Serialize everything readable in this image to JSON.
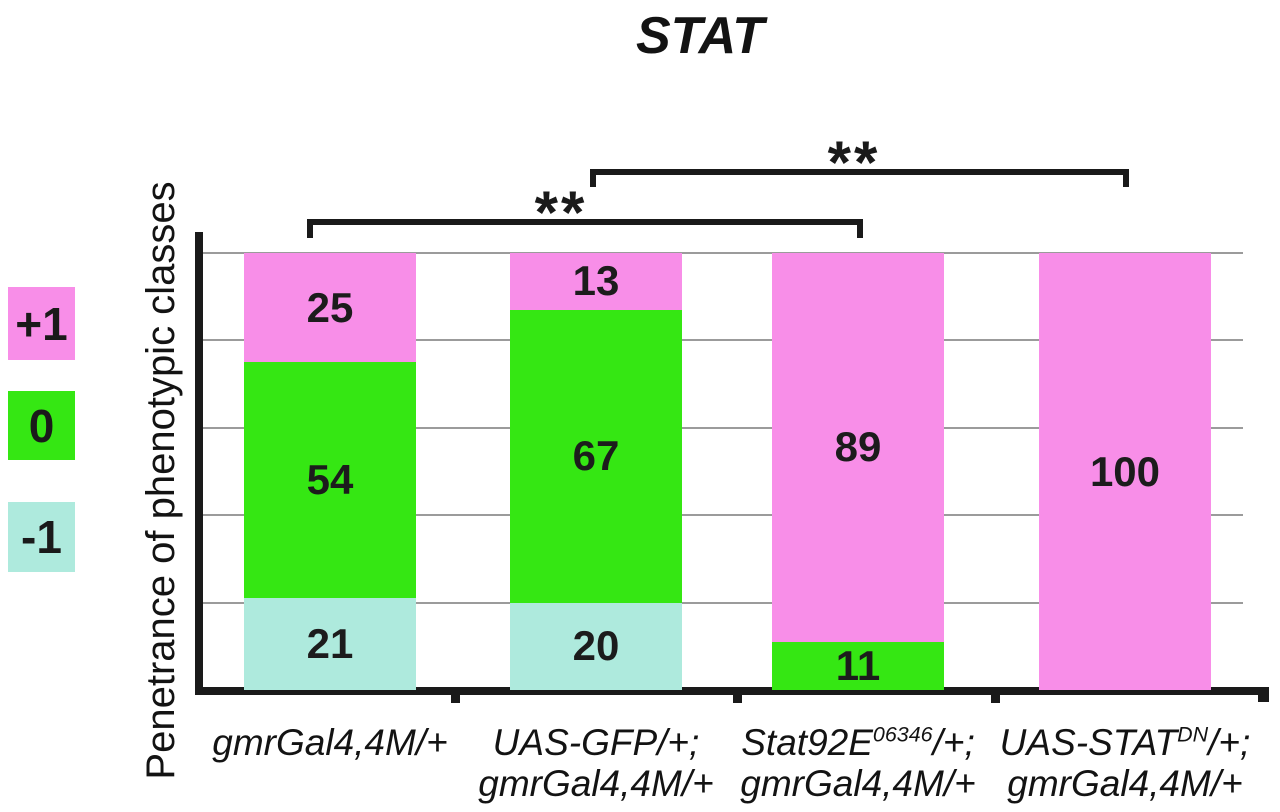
{
  "chart_data": {
    "type": "bar",
    "stacked": true,
    "title": "STAT",
    "ylabel": "Penetrance of phenotypic classes",
    "xlabel": "",
    "ylim": [
      0,
      100
    ],
    "gridline_values": [
      100,
      80,
      60,
      40,
      20
    ],
    "grid": true,
    "legend_position": "left",
    "legend": [
      {
        "label": "+1",
        "color": "#f88ee8"
      },
      {
        "label": "0",
        "color": "#35e713"
      },
      {
        "label": "-1",
        "color": "#aeeadd"
      }
    ],
    "categories": [
      {
        "text": "gmrGal4,4M/+",
        "label_lines": [
          [
            {
              "t": "gmrGal4,4M/+"
            }
          ]
        ]
      },
      {
        "text": "UAS-GFP/+; gmrGal4,4M/+",
        "label_lines": [
          [
            {
              "t": "UAS-GFP/+;"
            }
          ],
          [
            {
              "t": "gmrGal4,4M/+"
            }
          ]
        ]
      },
      {
        "text": "Stat92E06346/+; gmrGal4,4M/+",
        "label_lines": [
          [
            {
              "t": "Stat92E"
            },
            {
              "t": "06346",
              "sup": true
            },
            {
              "t": "/+;"
            }
          ],
          [
            {
              "t": "gmrGal4,4M/+"
            }
          ]
        ]
      },
      {
        "text": "UAS-STATDN/+; gmrGal4,4M/+",
        "label_lines": [
          [
            {
              "t": "UAS-STAT"
            },
            {
              "t": "DN",
              "sup": true
            },
            {
              "t": "/+;"
            }
          ],
          [
            {
              "t": "gmrGal4,4M/+"
            }
          ]
        ]
      }
    ],
    "series": [
      {
        "name": "+1",
        "color": "#f88ee8",
        "values": [
          25,
          13,
          89,
          100
        ]
      },
      {
        "name": "0",
        "color": "#35e713",
        "values": [
          54,
          67,
          11,
          0
        ]
      },
      {
        "name": "-1",
        "color": "#aeeadd",
        "values": [
          21,
          20,
          0,
          0
        ]
      }
    ],
    "annotations": [
      {
        "text": "**",
        "from_category": 0,
        "to_category": 2
      },
      {
        "text": "**",
        "from_category": 1,
        "to_category": 3
      }
    ],
    "colors": {
      "axis": "#1a1a1a",
      "gridline": "#9b9b9b",
      "value_text": "#1c1c1c"
    }
  }
}
